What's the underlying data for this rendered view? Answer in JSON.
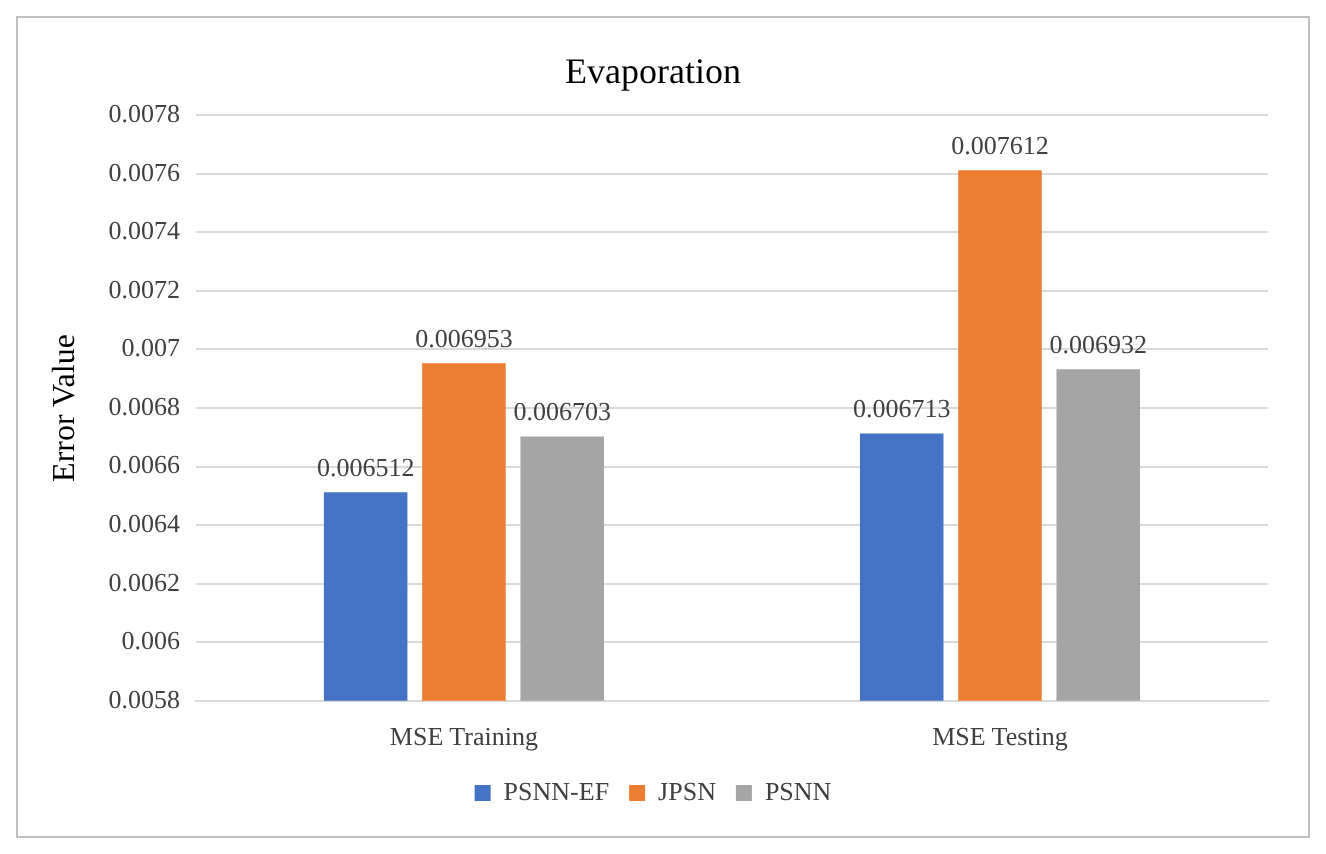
{
  "chart_data": {
    "type": "bar",
    "title": "Evaporation",
    "ylabel": "Error Value",
    "categories": [
      "MSE Training",
      "MSE Testing"
    ],
    "series": [
      {
        "name": "PSNN-EF",
        "color": "#4472c4",
        "values": [
          0.006512,
          0.006713
        ]
      },
      {
        "name": "JPSN",
        "color": "#ed7d31",
        "values": [
          0.006953,
          0.007612
        ]
      },
      {
        "name": "PSNN",
        "color": "#a5a5a5",
        "values": [
          0.006703,
          0.006932
        ]
      }
    ],
    "ylim": [
      0.0058,
      0.0078
    ],
    "yticks": [
      0.0058,
      0.006,
      0.0062,
      0.0064,
      0.0066,
      0.0068,
      0.007,
      0.0072,
      0.0074,
      0.0076,
      0.0078
    ],
    "grid": "y",
    "legend": "bottom",
    "data_labels": true
  }
}
